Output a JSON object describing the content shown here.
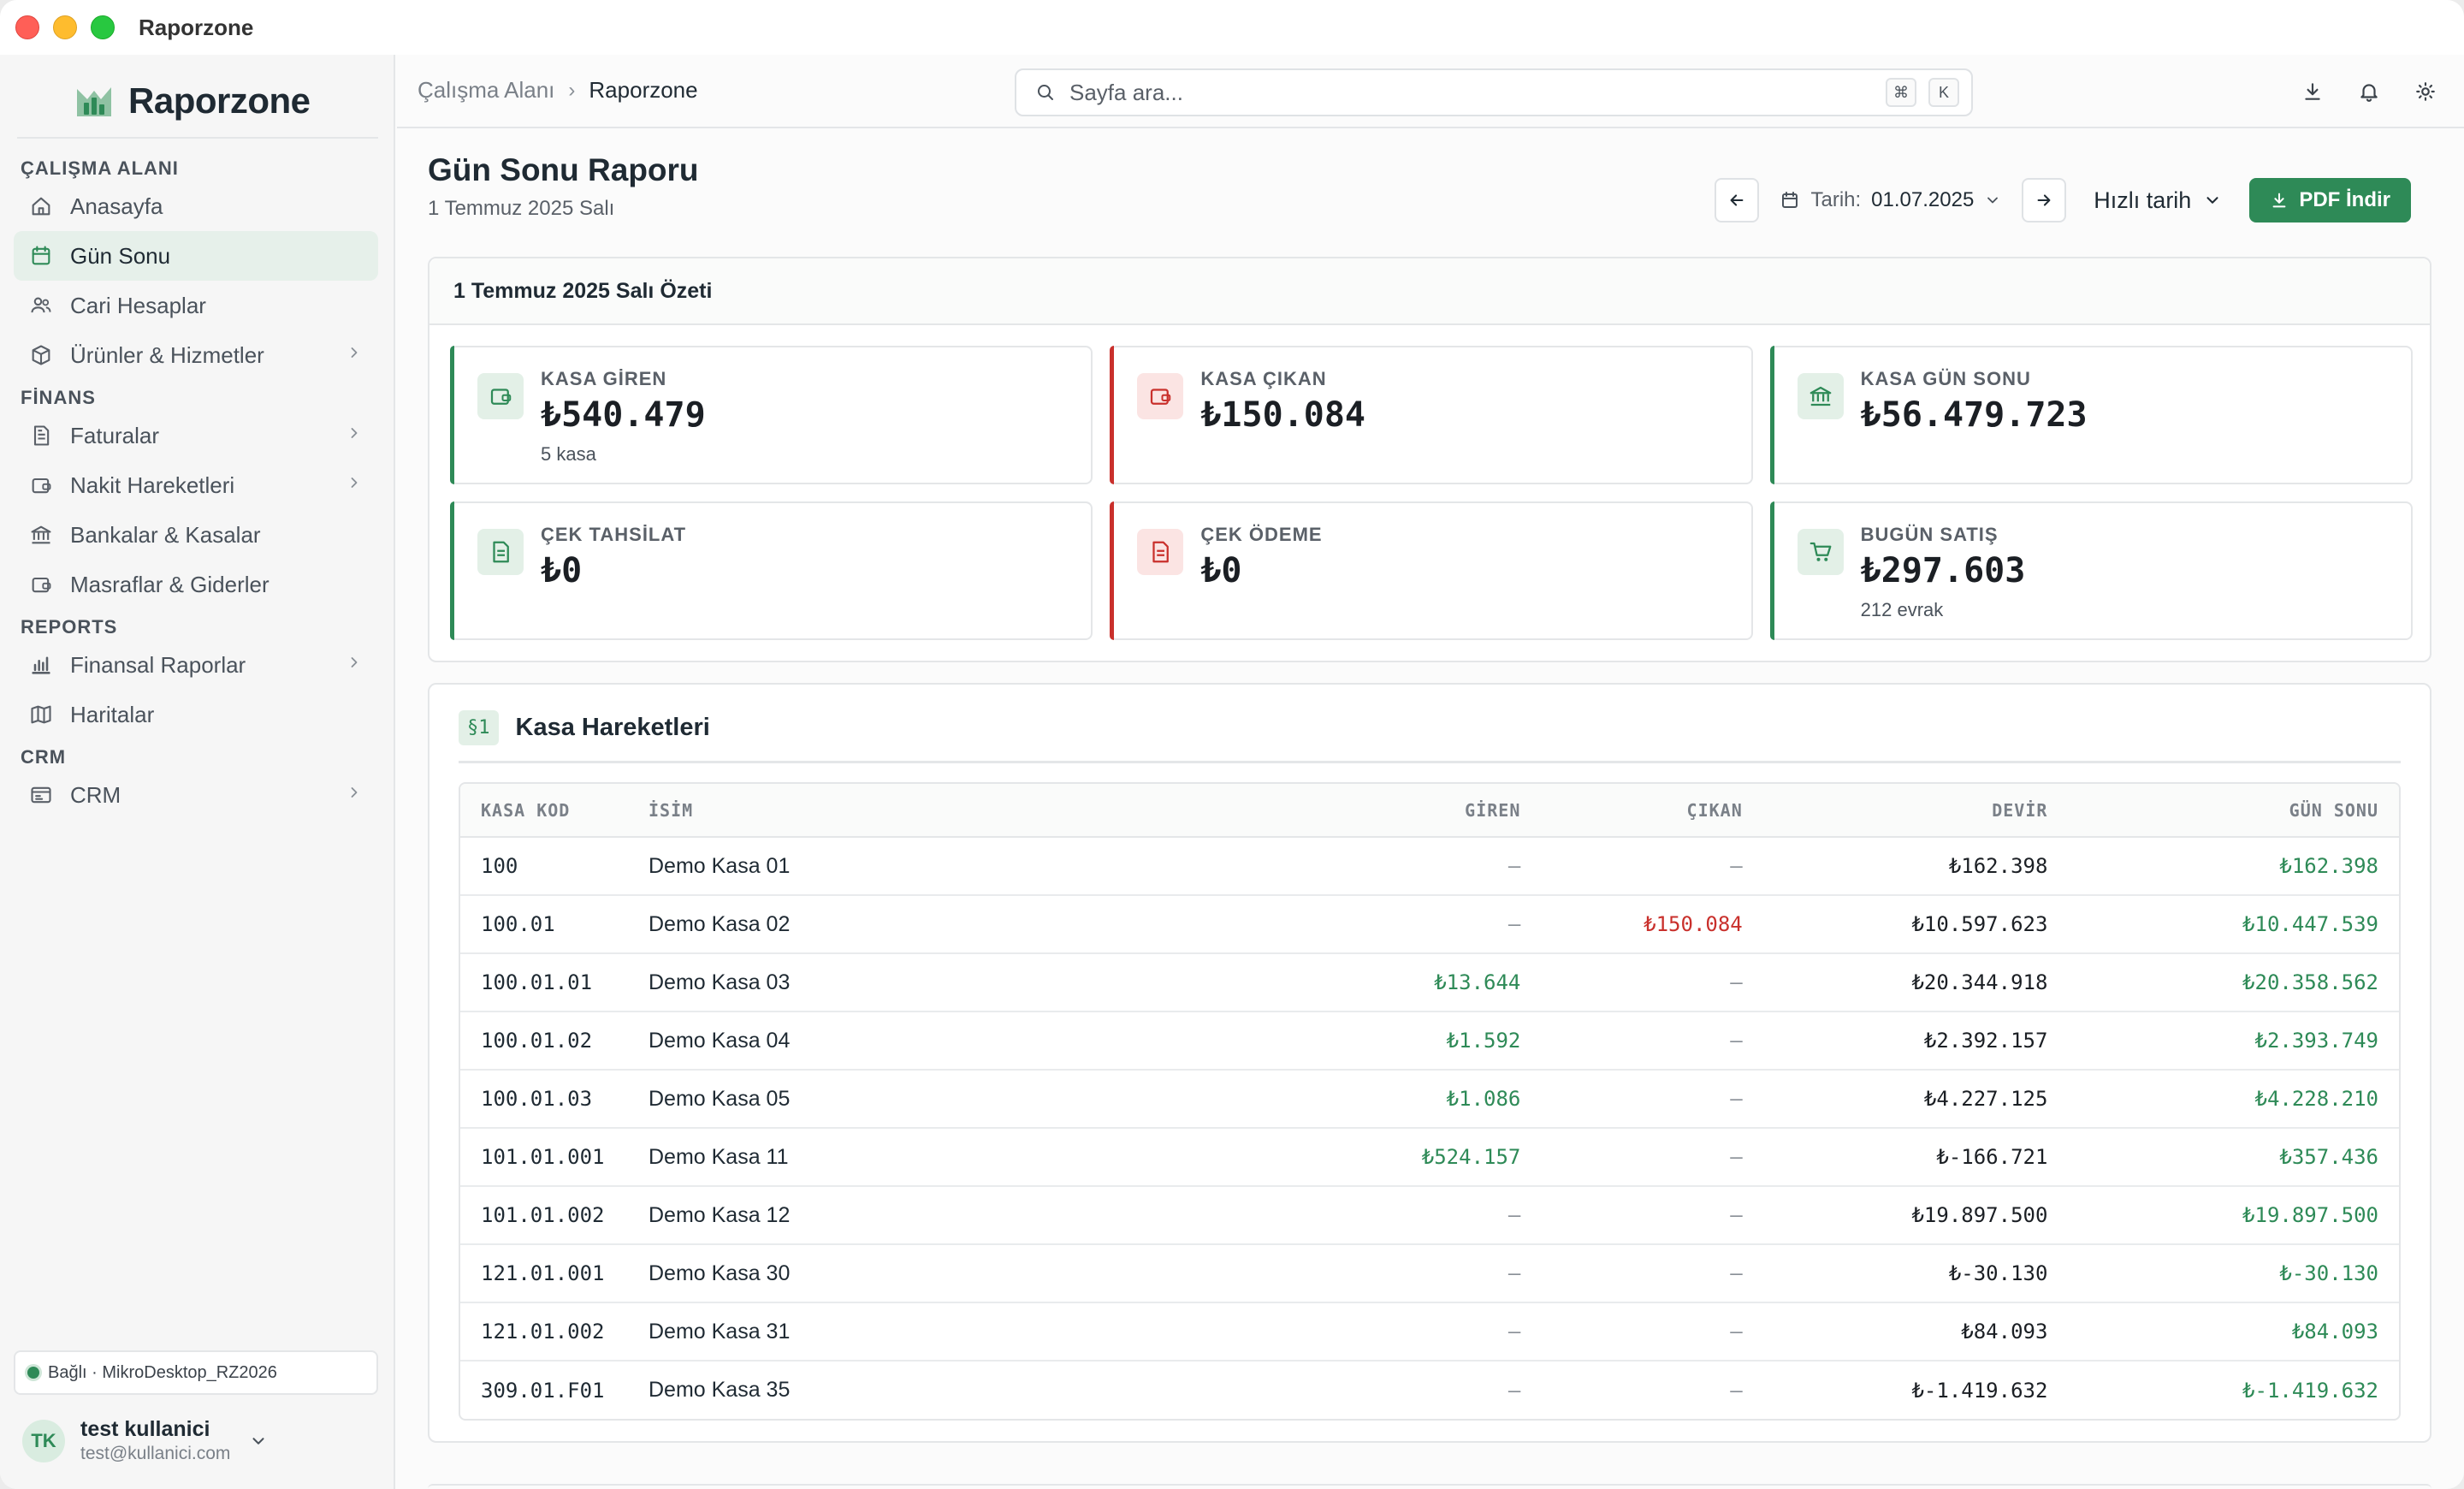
{
  "window": {
    "title": "Raporzone"
  },
  "sidebar": {
    "brand": "Raporzone",
    "sections": [
      {
        "title": "ÇALIŞMA ALANI",
        "items": [
          {
            "label": "Anasayfa",
            "icon": "home-icon",
            "chevron": false,
            "active": false
          },
          {
            "label": "Gün Sonu",
            "icon": "calendar-icon",
            "chevron": false,
            "active": true
          },
          {
            "label": "Cari Hesaplar",
            "icon": "users-icon",
            "chevron": false,
            "active": false
          },
          {
            "label": "Ürünler & Hizmetler",
            "icon": "box-icon",
            "chevron": true,
            "active": false
          }
        ]
      },
      {
        "title": "FİNANS",
        "items": [
          {
            "label": "Faturalar",
            "icon": "document-icon",
            "chevron": true,
            "active": false
          },
          {
            "label": "Nakit Hareketleri",
            "icon": "wallet-icon",
            "chevron": true,
            "active": false
          },
          {
            "label": "Bankalar & Kasalar",
            "icon": "bank-icon",
            "chevron": false,
            "active": false
          },
          {
            "label": "Masraflar & Giderler",
            "icon": "wallet-icon",
            "chevron": false,
            "active": false
          }
        ]
      },
      {
        "title": "REPORTS",
        "items": [
          {
            "label": "Finansal Raporlar",
            "icon": "bar-chart-icon",
            "chevron": true,
            "active": false
          },
          {
            "label": "Haritalar",
            "icon": "map-icon",
            "chevron": false,
            "active": false
          }
        ]
      },
      {
        "title": "CRM",
        "items": [
          {
            "label": "CRM",
            "icon": "crm-icon",
            "chevron": true,
            "active": false
          }
        ]
      }
    ],
    "connection": "Bağlı · MikroDesktop_RZ2026",
    "user": {
      "initials": "TK",
      "name": "test kullanici",
      "email": "test@kullanici.com"
    }
  },
  "topbar": {
    "breadcrumb": [
      "Çalışma Alanı",
      "Raporzone"
    ],
    "search_placeholder": "Sayfa ara...",
    "shortcut": [
      "⌘",
      "K"
    ]
  },
  "page": {
    "title": "Gün Sonu Raporu",
    "subtitle": "1 Temmuz 2025 Salı",
    "date_label": "Tarih:",
    "date_value": "01.07.2025",
    "quick_date": "Hızlı tarih",
    "pdf_button": "PDF İndir"
  },
  "summary": {
    "title": "1 Temmuz 2025 Salı Özeti",
    "cards": [
      {
        "label": "KASA GİREN",
        "value": "₺540.479",
        "sub": "5 kasa",
        "tone": "green",
        "icon": "wallet-in-icon"
      },
      {
        "label": "KASA ÇIKAN",
        "value": "₺150.084",
        "sub": "",
        "tone": "red",
        "icon": "wallet-out-icon"
      },
      {
        "label": "KASA GÜN SONU",
        "value": "₺56.479.723",
        "sub": "",
        "tone": "green",
        "icon": "bank-icon"
      },
      {
        "label": "ÇEK TAHSİLAT",
        "value": "₺0",
        "sub": "",
        "tone": "green",
        "icon": "cheque-in-icon"
      },
      {
        "label": "ÇEK ÖDEME",
        "value": "₺0",
        "sub": "",
        "tone": "red",
        "icon": "cheque-out-icon"
      },
      {
        "label": "BUGÜN SATIŞ",
        "value": "₺297.603",
        "sub": "212 evrak",
        "tone": "green",
        "icon": "cart-icon"
      }
    ]
  },
  "kasa": {
    "badge": "§1",
    "title": "Kasa Hareketleri",
    "columns": [
      "KASA KOD",
      "İSİM",
      "GİREN",
      "ÇIKAN",
      "DEVİR",
      "GÜN SONU"
    ],
    "rows": [
      {
        "kod": "100",
        "isim": "Demo Kasa 01",
        "giren": "—",
        "cikan": "—",
        "devir": "₺162.398",
        "gunsonu": "₺162.398"
      },
      {
        "kod": "100.01",
        "isim": "Demo Kasa 02",
        "giren": "—",
        "cikan": "₺150.084",
        "devir": "₺10.597.623",
        "gunsonu": "₺10.447.539"
      },
      {
        "kod": "100.01.01",
        "isim": "Demo Kasa 03",
        "giren": "₺13.644",
        "cikan": "—",
        "devir": "₺20.344.918",
        "gunsonu": "₺20.358.562"
      },
      {
        "kod": "100.01.02",
        "isim": "Demo Kasa 04",
        "giren": "₺1.592",
        "cikan": "—",
        "devir": "₺2.392.157",
        "gunsonu": "₺2.393.749"
      },
      {
        "kod": "100.01.03",
        "isim": "Demo Kasa 05",
        "giren": "₺1.086",
        "cikan": "—",
        "devir": "₺4.227.125",
        "gunsonu": "₺4.228.210"
      },
      {
        "kod": "101.01.001",
        "isim": "Demo Kasa 11",
        "giren": "₺524.157",
        "cikan": "—",
        "devir": "₺-166.721",
        "gunsonu": "₺357.436"
      },
      {
        "kod": "101.01.002",
        "isim": "Demo Kasa 12",
        "giren": "—",
        "cikan": "—",
        "devir": "₺19.897.500",
        "gunsonu": "₺19.897.500"
      },
      {
        "kod": "121.01.001",
        "isim": "Demo Kasa 30",
        "giren": "—",
        "cikan": "—",
        "devir": "₺-30.130",
        "gunsonu": "₺-30.130"
      },
      {
        "kod": "121.01.002",
        "isim": "Demo Kasa 31",
        "giren": "—",
        "cikan": "—",
        "devir": "₺84.093",
        "gunsonu": "₺84.093"
      },
      {
        "kod": "309.01.F01",
        "isim": "Demo Kasa 35",
        "giren": "—",
        "cikan": "—",
        "devir": "₺-1.419.632",
        "gunsonu": "₺-1.419.632"
      }
    ]
  },
  "colors": {
    "accent": "#2e8a57",
    "negative": "#c9302c",
    "active_bg": "#e6f0ea"
  }
}
